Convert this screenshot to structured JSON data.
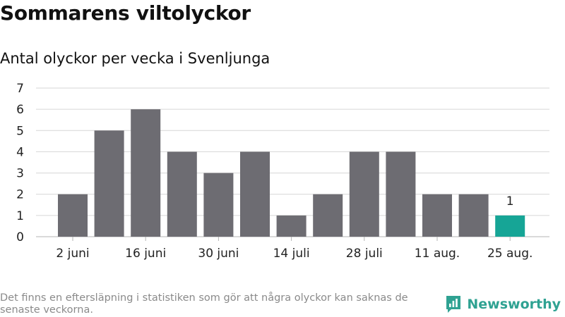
{
  "title": "Sommarens viltolyckor",
  "subtitle": "Antal olyckor per vecka i Svenljunga",
  "footnote": "Det finns en eftersläpning i statistiken som gör att några olyckor kan saknas de senaste veckorna.",
  "brand": "Newsworthy",
  "colors": {
    "bar": "#6d6c72",
    "highlight": "#16a596",
    "grid": "#d6d6d6",
    "brand": "#2fa292"
  },
  "chart_data": {
    "type": "bar",
    "title": "Antal olyckor per vecka i Svenljunga",
    "xlabel": "",
    "ylabel": "",
    "ylim": [
      0,
      7
    ],
    "yticks": [
      0,
      1,
      2,
      3,
      4,
      5,
      6,
      7
    ],
    "grid": true,
    "values": [
      2,
      5,
      6,
      4,
      3,
      4,
      1,
      2,
      4,
      4,
      2,
      2,
      1
    ],
    "highlight_index": 12,
    "data_labels": [
      {
        "index": 12,
        "text": "1"
      }
    ],
    "xtick_labels": [
      {
        "index": 0,
        "text": "2 juni"
      },
      {
        "index": 2,
        "text": "16 juni"
      },
      {
        "index": 4,
        "text": "30 juni"
      },
      {
        "index": 6,
        "text": "14 juli"
      },
      {
        "index": 8,
        "text": "28 juli"
      },
      {
        "index": 10,
        "text": "11 aug."
      },
      {
        "index": 12,
        "text": "25 aug."
      }
    ]
  }
}
